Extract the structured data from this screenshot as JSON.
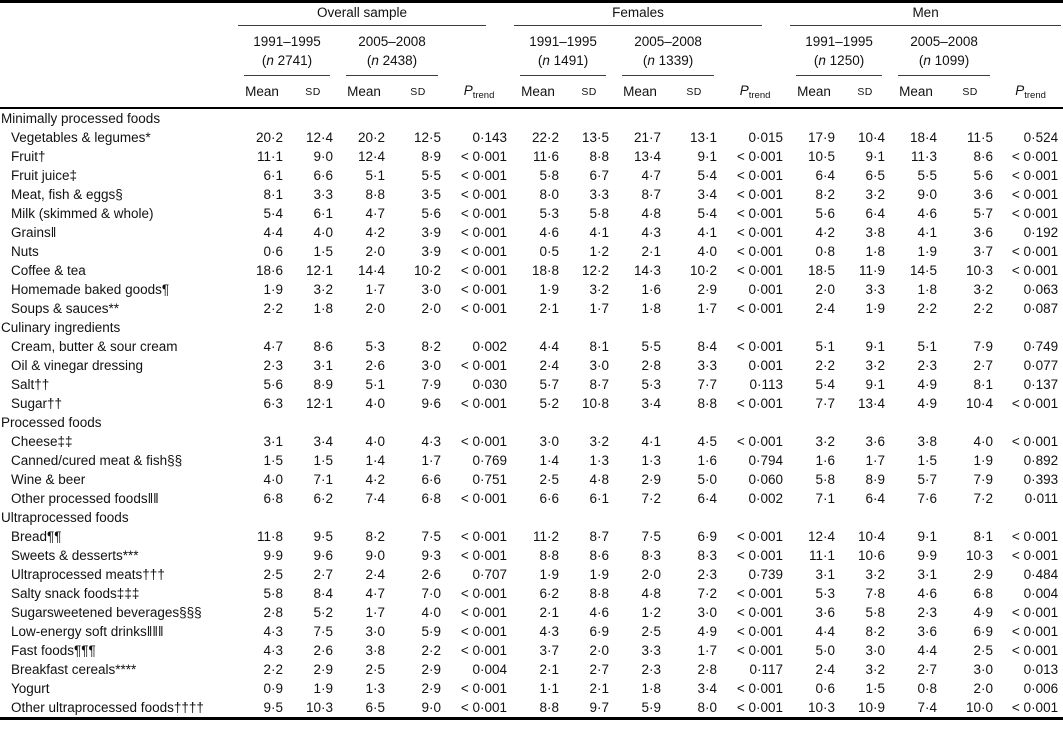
{
  "header": {
    "groups": [
      {
        "label": "Overall sample",
        "periods": [
          {
            "years": "1991–1995",
            "n": "2741"
          },
          {
            "years": "2005–2008",
            "n": "2438"
          }
        ]
      },
      {
        "label": "Females",
        "periods": [
          {
            "years": "1991–1995",
            "n": "1491"
          },
          {
            "years": "2005–2008",
            "n": "1339"
          }
        ]
      },
      {
        "label": "Men",
        "periods": [
          {
            "years": "1991–1995",
            "n": "1250"
          },
          {
            "years": "2005–2008",
            "n": "1099"
          }
        ]
      }
    ],
    "n_symbol": "n",
    "paren_open": "(",
    "paren_close": ")",
    "mean_label": "Mean",
    "sd_label": "SD",
    "p_label": "P",
    "p_subscript": "trend"
  },
  "sections": [
    {
      "title": "Minimally processed foods",
      "rows": [
        {
          "label": "Vegetables & legumes*",
          "values": [
            "20·2",
            "12·4",
            "20·2",
            "12·5",
            "0·143",
            "22·2",
            "13·5",
            "21·7",
            "13·1",
            "0·015",
            "17·9",
            "10·4",
            "18·4",
            "11·5",
            "0·524"
          ]
        },
        {
          "label": "Fruit†",
          "values": [
            "11·1",
            "9·0",
            "12·4",
            "8·9",
            "< 0·001",
            "11·6",
            "8·8",
            "13·4",
            "9·1",
            "< 0·001",
            "10·5",
            "9·1",
            "11·3",
            "8·6",
            "< 0·001"
          ]
        },
        {
          "label": "Fruit juice‡",
          "values": [
            "6·1",
            "6·6",
            "5·1",
            "5·5",
            "< 0·001",
            "5·8",
            "6·7",
            "4·7",
            "5·4",
            "< 0·001",
            "6·4",
            "6·5",
            "5·5",
            "5·6",
            "< 0·001"
          ]
        },
        {
          "label": "Meat, fish & eggs§",
          "values": [
            "8·1",
            "3·3",
            "8·8",
            "3·5",
            "< 0·001",
            "8·0",
            "3·3",
            "8·7",
            "3·4",
            "< 0·001",
            "8·2",
            "3·2",
            "9·0",
            "3·6",
            "< 0·001"
          ]
        },
        {
          "label": "Milk (skimmed & whole)",
          "values": [
            "5·4",
            "6·1",
            "4·7",
            "5·6",
            "< 0·001",
            "5·3",
            "5·8",
            "4·8",
            "5·4",
            "< 0·001",
            "5·6",
            "6·4",
            "4·6",
            "5·7",
            "< 0·001"
          ]
        },
        {
          "label": "Grains‖",
          "values": [
            "4·4",
            "4·0",
            "4·2",
            "3·9",
            "< 0·001",
            "4·6",
            "4·1",
            "4·3",
            "4·1",
            "< 0·001",
            "4·2",
            "3·8",
            "4·1",
            "3·6",
            "0·192"
          ]
        },
        {
          "label": "Nuts",
          "values": [
            "0·6",
            "1·5",
            "2·0",
            "3·9",
            "< 0·001",
            "0·5",
            "1·2",
            "2·1",
            "4·0",
            "< 0·001",
            "0·8",
            "1·8",
            "1·9",
            "3·7",
            "< 0·001"
          ]
        },
        {
          "label": "Coffee & tea",
          "values": [
            "18·6",
            "12·1",
            "14·4",
            "10·2",
            "< 0·001",
            "18·8",
            "12·2",
            "14·3",
            "10·2",
            "< 0·001",
            "18·5",
            "11·9",
            "14·5",
            "10·3",
            "< 0·001"
          ]
        },
        {
          "label": "Homemade baked goods¶",
          "values": [
            "1·9",
            "3·2",
            "1·7",
            "3·0",
            "< 0·001",
            "1·9",
            "3·2",
            "1·6",
            "2·9",
            "0·001",
            "2·0",
            "3·3",
            "1·8",
            "3·2",
            "0·063"
          ]
        },
        {
          "label": "Soups & sauces**",
          "values": [
            "2·2",
            "1·8",
            "2·0",
            "2·0",
            "< 0·001",
            "2·1",
            "1·7",
            "1·8",
            "1·7",
            "< 0·001",
            "2·4",
            "1·9",
            "2·2",
            "2·2",
            "0·087"
          ]
        }
      ]
    },
    {
      "title": "Culinary ingredients",
      "rows": [
        {
          "label": "Cream, butter & sour cream",
          "values": [
            "4·7",
            "8·6",
            "5·3",
            "8·2",
            "0·002",
            "4·4",
            "8·1",
            "5·5",
            "8·4",
            "< 0·001",
            "5·1",
            "9·1",
            "5·1",
            "7·9",
            "0·749"
          ]
        },
        {
          "label": "Oil & vinegar dressing",
          "values": [
            "2·3",
            "3·1",
            "2·6",
            "3·0",
            "< 0·001",
            "2·4",
            "3·0",
            "2·8",
            "3·3",
            "0·001",
            "2·2",
            "3·2",
            "2·3",
            "2·7",
            "0·077"
          ]
        },
        {
          "label": "Salt††",
          "values": [
            "5·6",
            "8·9",
            "5·1",
            "7·9",
            "0·030",
            "5·7",
            "8·7",
            "5·3",
            "7·7",
            "0·113",
            "5·4",
            "9·1",
            "4·9",
            "8·1",
            "0·137"
          ]
        },
        {
          "label": "Sugar††",
          "values": [
            "6·3",
            "12·1",
            "4·0",
            "9·6",
            "< 0·001",
            "5·2",
            "10·8",
            "3·4",
            "8·8",
            "< 0·001",
            "7·7",
            "13·4",
            "4·9",
            "10·4",
            "< 0·001"
          ]
        }
      ]
    },
    {
      "title": "Processed foods",
      "rows": [
        {
          "label": "Cheese‡‡",
          "values": [
            "3·1",
            "3·4",
            "4·0",
            "4·3",
            "< 0·001",
            "3·0",
            "3·2",
            "4·1",
            "4·5",
            "< 0·001",
            "3·2",
            "3·6",
            "3·8",
            "4·0",
            "< 0·001"
          ]
        },
        {
          "label": "Canned/cured meat & fish§§",
          "values": [
            "1·5",
            "1·5",
            "1·4",
            "1·7",
            "0·769",
            "1·4",
            "1·3",
            "1·3",
            "1·6",
            "0·794",
            "1·6",
            "1·7",
            "1·5",
            "1·9",
            "0·892"
          ]
        },
        {
          "label": "Wine & beer",
          "values": [
            "4·0",
            "7·1",
            "4·2",
            "6·6",
            "0·751",
            "2·5",
            "4·8",
            "2·9",
            "5·0",
            "0·060",
            "5·8",
            "8·9",
            "5·7",
            "7·9",
            "0·393"
          ]
        },
        {
          "label": "Other processed foods‖‖",
          "values": [
            "6·8",
            "6·2",
            "7·4",
            "6·8",
            "< 0·001",
            "6·6",
            "6·1",
            "7·2",
            "6·4",
            "0·002",
            "7·1",
            "6·4",
            "7·6",
            "7·2",
            "0·011"
          ]
        }
      ]
    },
    {
      "title": "Ultraprocessed foods",
      "rows": [
        {
          "label": "Bread¶¶",
          "values": [
            "11·8",
            "9·5",
            "8·2",
            "7·5",
            "< 0·001",
            "11·2",
            "8·7",
            "7·5",
            "6·9",
            "< 0·001",
            "12·4",
            "10·4",
            "9·1",
            "8·1",
            "< 0·001"
          ]
        },
        {
          "label": "Sweets & desserts***",
          "values": [
            "9·9",
            "9·6",
            "9·0",
            "9·3",
            "< 0·001",
            "8·8",
            "8·6",
            "8·3",
            "8·3",
            "< 0·001",
            "11·1",
            "10·6",
            "9·9",
            "10·3",
            "< 0·001"
          ]
        },
        {
          "label": "Ultraprocessed meats†††",
          "values": [
            "2·5",
            "2·7",
            "2·4",
            "2·6",
            "0·707",
            "1·9",
            "1·9",
            "2·0",
            "2·3",
            "0·739",
            "3·1",
            "3·2",
            "3·1",
            "2·9",
            "0·484"
          ]
        },
        {
          "label": "Salty snack foods‡‡‡",
          "values": [
            "5·8",
            "8·4",
            "4·7",
            "7·0",
            "< 0·001",
            "6·2",
            "8·8",
            "4·8",
            "7·2",
            "< 0·001",
            "5·3",
            "7·8",
            "4·6",
            "6·8",
            "0·004"
          ]
        },
        {
          "label": "Sugarsweetened beverages§§§",
          "values": [
            "2·8",
            "5·2",
            "1·7",
            "4·0",
            "< 0·001",
            "2·1",
            "4·6",
            "1·2",
            "3·0",
            "< 0·001",
            "3·6",
            "5·8",
            "2·3",
            "4·9",
            "< 0·001"
          ]
        },
        {
          "label": "Low-energy soft drinks‖‖‖",
          "values": [
            "4·3",
            "7·5",
            "3·0",
            "5·9",
            "< 0·001",
            "4·3",
            "6·9",
            "2·5",
            "4·9",
            "< 0·001",
            "4·4",
            "8·2",
            "3·6",
            "6·9",
            "< 0·001"
          ]
        },
        {
          "label": "Fast foods¶¶¶",
          "values": [
            "4·3",
            "2·6",
            "3·8",
            "2·2",
            "< 0·001",
            "3·7",
            "2·0",
            "3·3",
            "1·7",
            "< 0·001",
            "5·0",
            "3·0",
            "4·4",
            "2·5",
            "< 0·001"
          ]
        },
        {
          "label": "Breakfast cereals****",
          "values": [
            "2·2",
            "2·9",
            "2·5",
            "2·9",
            "0·004",
            "2·1",
            "2·7",
            "2·3",
            "2·8",
            "0·117",
            "2·4",
            "3·2",
            "2·7",
            "3·0",
            "0·013"
          ]
        },
        {
          "label": "Yogurt",
          "values": [
            "0·9",
            "1·9",
            "1·3",
            "2·9",
            "< 0·001",
            "1·1",
            "2·1",
            "1·8",
            "3·4",
            "< 0·001",
            "0·6",
            "1·5",
            "0·8",
            "2·0",
            "0·006"
          ]
        },
        {
          "label": "Other ultraprocessed foods††††",
          "values": [
            "9·5",
            "10·3",
            "6·5",
            "9·0",
            "< 0·001",
            "8·8",
            "9·7",
            "5·9",
            "8·0",
            "< 0·001",
            "10·3",
            "10·9",
            "7·4",
            "10·0",
            "< 0·001"
          ]
        }
      ]
    }
  ]
}
